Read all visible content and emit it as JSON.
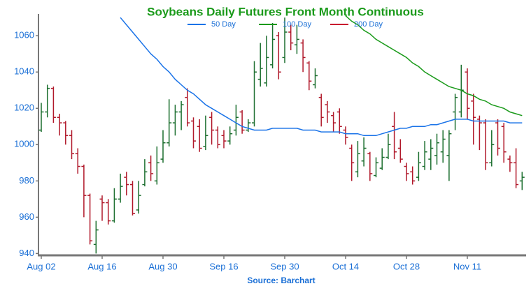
{
  "chart_data": {
    "type": "ohlc",
    "title": "Soybeans Daily Futures Front Month Continuous",
    "source": "Source: Barchart",
    "categories": [
      "Aug 02",
      null,
      null,
      null,
      null,
      null,
      null,
      null,
      null,
      null,
      "Aug 16",
      null,
      null,
      null,
      null,
      null,
      null,
      null,
      null,
      null,
      "Aug 30",
      null,
      null,
      null,
      null,
      null,
      null,
      null,
      null,
      null,
      "Sep 16",
      null,
      null,
      null,
      null,
      null,
      null,
      null,
      null,
      null,
      "Sep 30",
      null,
      null,
      null,
      null,
      null,
      null,
      null,
      null,
      null,
      "Oct 14",
      null,
      null,
      null,
      null,
      null,
      null,
      null,
      null,
      null,
      "Oct 28",
      null,
      null,
      null,
      null,
      null,
      null,
      null,
      null,
      null,
      "Nov 11",
      null,
      null,
      null,
      null,
      null,
      null,
      null,
      null,
      null
    ],
    "ohlc": {
      "open": [
        1008,
        1018,
        1031,
        1015,
        1012,
        1005,
        995,
        988,
        972,
        945,
        970,
        968,
        958,
        970,
        982,
        978,
        964,
        978,
        990,
        980,
        992,
        1001,
        1012,
        1018,
        1026,
        1013,
        1010,
        999,
        1015,
        1008,
        1005,
        1002,
        1008,
        1018,
        1008,
        1012,
        1036,
        1034,
        1044,
        1060,
        1048,
        1062,
        1055,
        1056,
        1045,
        1033,
        1026,
        1022,
        1016,
        1018,
        1008,
        998,
        985,
        991,
        995,
        983,
        987,
        993,
        1010,
        998,
        988,
        985,
        982,
        988,
        992,
        994,
        996,
        994,
        1018,
        1018,
        1040,
        1024,
        1014,
        1012,
        990,
        1012,
        1010,
        992,
        990,
        980
      ],
      "high": [
        1023,
        1033,
        1032,
        1017,
        1013,
        1008,
        998,
        989,
        973,
        958,
        972,
        970,
        976,
        984,
        985,
        980,
        980,
        992,
        994,
        999,
        1008,
        1025,
        1022,
        1024,
        1031,
        1015,
        1014,
        1016,
        1018,
        1010,
        1008,
        1010,
        1022,
        1019,
        1014,
        1046,
        1056,
        1060,
        1067,
        1062,
        1070,
        1066,
        1066,
        1058,
        1046,
        1042,
        1028,
        1024,
        1018,
        1020,
        1010,
        1000,
        1002,
        1004,
        996,
        993,
        998,
        1006,
        1018,
        1003,
        990,
        988,
        996,
        1002,
        1003,
        1006,
        1008,
        1008,
        1028,
        1044,
        1042,
        1028,
        1016,
        1014,
        1008,
        1014,
        1012,
        994,
        998,
        985
      ],
      "low": [
        1007,
        1015,
        1012,
        1005,
        1000,
        992,
        984,
        960,
        945,
        940,
        958,
        956,
        957,
        968,
        972,
        961,
        962,
        977,
        980,
        978,
        990,
        999,
        1005,
        1008,
        1010,
        998,
        996,
        997,
        1000,
        998,
        998,
        1000,
        1005,
        1006,
        1007,
        1010,
        1032,
        1032,
        1042,
        1036,
        1045,
        1052,
        1050,
        1040,
        1030,
        1031,
        1010,
        1012,
        1007,
        1006,
        1000,
        980,
        982,
        988,
        980,
        982,
        986,
        992,
        992,
        990,
        980,
        978,
        980,
        986,
        986,
        989,
        990,
        980,
        1008,
        1015,
        1014,
        1000,
        997,
        986,
        988,
        994,
        990,
        985,
        976,
        975
      ],
      "close": [
        1018,
        1031,
        1015,
        1012,
        1005,
        995,
        988,
        972,
        947,
        953,
        968,
        958,
        970,
        977,
        978,
        962,
        972,
        985,
        984,
        990,
        1001,
        1012,
        1018,
        1022,
        1012,
        1002,
        998,
        1005,
        1008,
        1000,
        1002,
        1006,
        1015,
        1008,
        1012,
        1040,
        1042,
        1048,
        1058,
        1040,
        1062,
        1056,
        1058,
        1048,
        1035,
        1038,
        1015,
        1018,
        1012,
        1010,
        1004,
        990,
        995,
        998,
        984,
        990,
        993,
        1000,
        996,
        992,
        984,
        980,
        990,
        996,
        998,
        1001,
        1003,
        1006,
        1026,
        1030,
        1020,
        1015,
        1012,
        990,
        1000,
        998,
        996,
        990,
        978,
        982
      ],
      "up_color": "#1b6e2e",
      "down_color": "#b0182a"
    },
    "series": [
      {
        "name": "50 Day",
        "color": "#1a73e8",
        "values": [
          null,
          null,
          null,
          null,
          null,
          null,
          null,
          null,
          null,
          null,
          null,
          null,
          null,
          1070,
          1066,
          1062,
          1058,
          1054,
          1050,
          1047,
          1043,
          1040,
          1036,
          1033,
          1030,
          1028,
          1025,
          1022,
          1020,
          1018,
          1016,
          1014,
          1012,
          1010,
          1009,
          1008,
          1008,
          1008,
          1009,
          1009,
          1009,
          1009,
          1009,
          1008,
          1008,
          1008,
          1007,
          1007,
          1007,
          1007,
          1006,
          1006,
          1006,
          1005,
          1005,
          1005,
          1006,
          1007,
          1008,
          1009,
          1009,
          1010,
          1010,
          1010,
          1011,
          1011,
          1012,
          1013,
          1014,
          1014,
          1014,
          1013,
          1013,
          1013,
          1013,
          1013,
          1013,
          1012,
          1012,
          1012
        ]
      },
      {
        "name": "100 Day",
        "color": "#1a9a1a",
        "values": [
          null,
          null,
          null,
          null,
          null,
          null,
          null,
          null,
          null,
          null,
          null,
          null,
          null,
          null,
          null,
          null,
          null,
          null,
          null,
          null,
          null,
          null,
          null,
          null,
          null,
          null,
          null,
          null,
          null,
          null,
          null,
          null,
          null,
          null,
          null,
          null,
          null,
          null,
          null,
          null,
          null,
          null,
          null,
          null,
          null,
          null,
          null,
          null,
          null,
          null,
          1071,
          1068,
          1066,
          1063,
          1061,
          1058,
          1056,
          1054,
          1052,
          1050,
          1048,
          1045,
          1043,
          1040,
          1038,
          1036,
          1034,
          1032,
          1031,
          1030,
          1028,
          1027,
          1025,
          1024,
          1022,
          1021,
          1020,
          1018,
          1017,
          1016
        ]
      },
      {
        "name": "200 Day",
        "color": "#c8102e",
        "values": [
          null,
          null,
          null,
          null,
          null,
          null,
          null,
          null,
          null,
          null,
          null,
          null,
          null,
          null,
          null,
          null,
          null,
          null,
          null,
          null,
          null,
          null,
          null,
          null,
          null,
          null,
          null,
          null,
          null,
          null,
          null,
          null,
          null,
          null,
          null,
          null,
          null,
          null,
          null,
          null,
          null,
          null,
          null,
          null,
          null,
          null,
          null,
          null,
          null,
          null,
          null,
          null,
          null,
          null,
          null,
          null,
          null,
          null,
          null,
          null,
          null,
          null,
          null,
          null,
          null,
          null,
          null,
          null,
          null,
          null,
          null,
          null,
          null,
          null,
          null,
          null,
          null,
          null,
          null,
          null
        ]
      }
    ],
    "ylim": [
      939,
      1072
    ],
    "yticks": [
      940,
      960,
      980,
      1000,
      1020,
      1040,
      1060
    ],
    "grid": false
  }
}
